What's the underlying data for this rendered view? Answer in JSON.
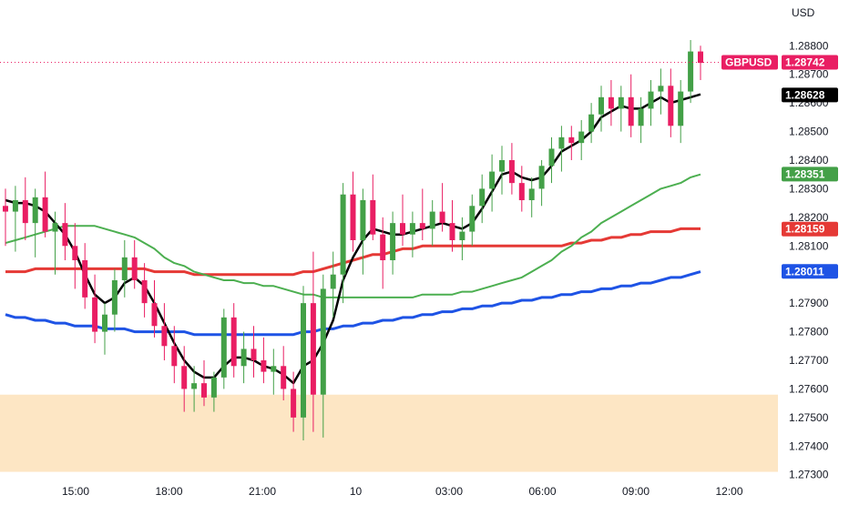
{
  "chart_data": {
    "type": "candlestick",
    "currency": "USD",
    "symbol": "GBPUSD",
    "y_ticks": [
      "1.28800",
      "1.28700",
      "1.28600",
      "1.28500",
      "1.28400",
      "1.28300",
      "1.28200",
      "1.28100",
      "1.27900",
      "1.27800",
      "1.27700",
      "1.27600",
      "1.27500",
      "1.27400",
      "1.27300"
    ],
    "x_ticks": [
      {
        "label": "15:00",
        "t": 0
      },
      {
        "label": "18:00",
        "t": 1
      },
      {
        "label": "21:00",
        "t": 2
      },
      {
        "label": "10",
        "t": 3
      },
      {
        "label": "03:00",
        "t": 4
      },
      {
        "label": "06:00",
        "t": 5
      },
      {
        "label": "09:00",
        "t": 6
      },
      {
        "label": "12:00",
        "t": 7
      }
    ],
    "ylim": [
      1.2728,
      1.2896
    ],
    "price_labels": [
      {
        "name": "last-price",
        "value": "1.28742",
        "symbol": "GBPUSD",
        "color": "#e91e63"
      },
      {
        "name": "ma-black",
        "value": "1.28628",
        "color": "#000000"
      },
      {
        "name": "ma-green",
        "value": "1.28351",
        "color": "#43a047"
      },
      {
        "name": "ma-red",
        "value": "1.28159",
        "color": "#e53935"
      },
      {
        "name": "ma-blue",
        "value": "1.28011",
        "color": "#1e53e5"
      }
    ],
    "demand_zone": {
      "from": 1.2731,
      "to": 1.2758,
      "color": "#fde6c4"
    },
    "colors": {
      "up": "#43a047",
      "down": "#e91e63",
      "ma_black": "#000000",
      "ma_green": "#4caf50",
      "ma_red": "#e53935",
      "ma_blue": "#1e53e5"
    },
    "candles": [
      [
        1.2824,
        1.283,
        1.281,
        1.2822
      ],
      [
        1.2822,
        1.2831,
        1.2808,
        1.2826
      ],
      [
        1.2826,
        1.2834,
        1.2812,
        1.2818
      ],
      [
        1.2818,
        1.283,
        1.2806,
        1.2827
      ],
      [
        1.2827,
        1.2836,
        1.2813,
        1.2815
      ],
      [
        1.2815,
        1.2822,
        1.28,
        1.2818
      ],
      [
        1.2818,
        1.2825,
        1.2805,
        1.281
      ],
      [
        1.281,
        1.2818,
        1.2795,
        1.2805
      ],
      [
        1.2805,
        1.2811,
        1.2788,
        1.2792
      ],
      [
        1.2792,
        1.28,
        1.2776,
        1.278
      ],
      [
        1.278,
        1.279,
        1.2772,
        1.2786
      ],
      [
        1.2786,
        1.2802,
        1.278,
        1.2798
      ],
      [
        1.2798,
        1.2812,
        1.2792,
        1.2806
      ],
      [
        1.2806,
        1.2812,
        1.2795,
        1.2798
      ],
      [
        1.2798,
        1.2804,
        1.2785,
        1.279
      ],
      [
        1.279,
        1.2798,
        1.2778,
        1.2782
      ],
      [
        1.2782,
        1.279,
        1.277,
        1.2775
      ],
      [
        1.2775,
        1.2782,
        1.2762,
        1.2768
      ],
      [
        1.2768,
        1.2775,
        1.2752,
        1.276
      ],
      [
        1.276,
        1.2768,
        1.2752,
        1.2762
      ],
      [
        1.2762,
        1.277,
        1.2754,
        1.2757
      ],
      [
        1.2757,
        1.2766,
        1.2752,
        1.2764
      ],
      [
        1.2764,
        1.2788,
        1.276,
        1.2785
      ],
      [
        1.2785,
        1.279,
        1.2764,
        1.2768
      ],
      [
        1.2768,
        1.278,
        1.2762,
        1.2774
      ],
      [
        1.2774,
        1.2782,
        1.2764,
        1.277
      ],
      [
        1.277,
        1.2778,
        1.2762,
        1.2766
      ],
      [
        1.2766,
        1.2774,
        1.2758,
        1.2768
      ],
      [
        1.2768,
        1.2775,
        1.2756,
        1.276
      ],
      [
        1.276,
        1.2766,
        1.2745,
        1.275
      ],
      [
        1.275,
        1.2796,
        1.2742,
        1.279
      ],
      [
        1.279,
        1.2808,
        1.2745,
        1.2758
      ],
      [
        1.2758,
        1.28,
        1.2743,
        1.2795
      ],
      [
        1.2795,
        1.2808,
        1.2785,
        1.28
      ],
      [
        1.28,
        1.2832,
        1.279,
        1.2828
      ],
      [
        1.2828,
        1.2836,
        1.2808,
        1.2812
      ],
      [
        1.2812,
        1.283,
        1.28,
        1.2826
      ],
      [
        1.2826,
        1.2835,
        1.2812,
        1.2814
      ],
      [
        1.2814,
        1.282,
        1.2795,
        1.2805
      ],
      [
        1.2805,
        1.2822,
        1.28,
        1.2818
      ],
      [
        1.2818,
        1.2828,
        1.281,
        1.2814
      ],
      [
        1.2814,
        1.2822,
        1.2806,
        1.2818
      ],
      [
        1.2818,
        1.283,
        1.2812,
        1.2816
      ],
      [
        1.2816,
        1.2826,
        1.281,
        1.2822
      ],
      [
        1.2822,
        1.2832,
        1.2815,
        1.2818
      ],
      [
        1.2818,
        1.2826,
        1.2808,
        1.2812
      ],
      [
        1.2812,
        1.282,
        1.2805,
        1.2815
      ],
      [
        1.2815,
        1.2828,
        1.281,
        1.2824
      ],
      [
        1.2824,
        1.2835,
        1.2818,
        1.283
      ],
      [
        1.283,
        1.2842,
        1.2822,
        1.2836
      ],
      [
        1.2836,
        1.2845,
        1.2828,
        1.284
      ],
      [
        1.284,
        1.2846,
        1.2828,
        1.2832
      ],
      [
        1.2832,
        1.2838,
        1.2822,
        1.2826
      ],
      [
        1.2826,
        1.2834,
        1.282,
        1.283
      ],
      [
        1.283,
        1.284,
        1.2824,
        1.2838
      ],
      [
        1.2838,
        1.2848,
        1.2832,
        1.2844
      ],
      [
        1.2844,
        1.2852,
        1.2836,
        1.2848
      ],
      [
        1.2848,
        1.2852,
        1.284,
        1.2846
      ],
      [
        1.2846,
        1.2854,
        1.284,
        1.285
      ],
      [
        1.285,
        1.286,
        1.2846,
        1.2856
      ],
      [
        1.2856,
        1.2866,
        1.285,
        1.2862
      ],
      [
        1.2862,
        1.2868,
        1.2852,
        1.2858
      ],
      [
        1.2858,
        1.2866,
        1.285,
        1.2862
      ],
      [
        1.2862,
        1.287,
        1.2848,
        1.2852
      ],
      [
        1.2852,
        1.2862,
        1.2846,
        1.2858
      ],
      [
        1.2858,
        1.2868,
        1.2852,
        1.2864
      ],
      [
        1.2864,
        1.2872,
        1.2856,
        1.2866
      ],
      [
        1.2866,
        1.2872,
        1.2848,
        1.2852
      ],
      [
        1.2852,
        1.2868,
        1.2846,
        1.2864
      ],
      [
        1.2864,
        1.2882,
        1.286,
        1.2878
      ],
      [
        1.2878,
        1.288,
        1.2868,
        1.2874
      ]
    ],
    "ma_black": [
      1.2826,
      1.2825,
      1.2825,
      1.2824,
      1.2822,
      1.2818,
      1.2814,
      1.2808,
      1.28,
      1.2793,
      1.279,
      1.2792,
      1.2797,
      1.2799,
      1.2796,
      1.279,
      1.2783,
      1.2776,
      1.277,
      1.2766,
      1.2764,
      1.2764,
      1.2768,
      1.2771,
      1.2771,
      1.277,
      1.2768,
      1.2767,
      1.2765,
      1.2762,
      1.2768,
      1.277,
      1.2776,
      1.2784,
      1.2798,
      1.2806,
      1.2812,
      1.2816,
      1.2815,
      1.2814,
      1.2814,
      1.2815,
      1.2816,
      1.2817,
      1.2818,
      1.2817,
      1.2816,
      1.2818,
      1.2823,
      1.2829,
      1.2835,
      1.2836,
      1.2834,
      1.2833,
      1.2834,
      1.2838,
      1.2843,
      1.2845,
      1.2847,
      1.285,
      1.2855,
      1.2857,
      1.2859,
      1.2858,
      1.2858,
      1.286,
      1.2862,
      1.286,
      1.2861,
      1.2862,
      1.2863
    ],
    "ma_green": [
      1.2811,
      1.2812,
      1.2813,
      1.2814,
      1.2815,
      1.2816,
      1.2817,
      1.2817,
      1.2817,
      1.2817,
      1.2816,
      1.2815,
      1.2814,
      1.2813,
      1.2811,
      1.2809,
      1.2806,
      1.2804,
      1.2803,
      1.2801,
      1.28,
      1.2799,
      1.2798,
      1.2798,
      1.2797,
      1.2797,
      1.2796,
      1.2796,
      1.2795,
      1.2794,
      1.2793,
      1.2793,
      1.2792,
      1.2792,
      1.2792,
      1.2792,
      1.2792,
      1.2792,
      1.2792,
      1.2792,
      1.2792,
      1.2792,
      1.2793,
      1.2793,
      1.2793,
      1.2793,
      1.2794,
      1.2794,
      1.2795,
      1.2796,
      1.2797,
      1.2798,
      1.2799,
      1.2801,
      1.2803,
      1.2805,
      1.2808,
      1.281,
      1.2813,
      1.2815,
      1.2818,
      1.282,
      1.2822,
      1.2824,
      1.2826,
      1.2828,
      1.283,
      1.2831,
      1.2832,
      1.2834,
      1.2835
    ],
    "ma_red": [
      1.2801,
      1.2801,
      1.2801,
      1.2802,
      1.2802,
      1.2802,
      1.2802,
      1.2802,
      1.2802,
      1.2802,
      1.2802,
      1.2802,
      1.2802,
      1.2802,
      1.2802,
      1.2801,
      1.2801,
      1.2801,
      1.2801,
      1.28,
      1.28,
      1.28,
      1.28,
      1.28,
      1.28,
      1.28,
      1.28,
      1.28,
      1.28,
      1.28,
      1.2801,
      1.2801,
      1.2802,
      1.2803,
      1.2804,
      1.2805,
      1.2806,
      1.2807,
      1.2807,
      1.2808,
      1.2809,
      1.2809,
      1.281,
      1.281,
      1.281,
      1.281,
      1.281,
      1.281,
      1.281,
      1.281,
      1.281,
      1.281,
      1.281,
      1.281,
      1.281,
      1.281,
      1.281,
      1.2811,
      1.2811,
      1.2812,
      1.2812,
      1.2813,
      1.2813,
      1.2814,
      1.2814,
      1.2815,
      1.2815,
      1.2815,
      1.2816,
      1.2816,
      1.2816
    ],
    "ma_blue": [
      1.2786,
      1.2785,
      1.2785,
      1.2784,
      1.2784,
      1.2783,
      1.2783,
      1.2782,
      1.2782,
      1.2782,
      1.2781,
      1.2781,
      1.2781,
      1.278,
      1.278,
      1.278,
      1.278,
      1.278,
      1.278,
      1.2779,
      1.2779,
      1.2779,
      1.2779,
      1.2779,
      1.2779,
      1.2779,
      1.2779,
      1.2779,
      1.2779,
      1.2779,
      1.278,
      1.278,
      1.2781,
      1.2781,
      1.2782,
      1.2782,
      1.2783,
      1.2783,
      1.2784,
      1.2784,
      1.2785,
      1.2785,
      1.2786,
      1.2786,
      1.2787,
      1.2787,
      1.2788,
      1.2788,
      1.2789,
      1.2789,
      1.279,
      1.279,
      1.2791,
      1.2791,
      1.2792,
      1.2792,
      1.2793,
      1.2793,
      1.2794,
      1.2794,
      1.2795,
      1.2795,
      1.2796,
      1.2796,
      1.2797,
      1.2797,
      1.2798,
      1.2799,
      1.2799,
      1.28,
      1.2801
    ]
  }
}
